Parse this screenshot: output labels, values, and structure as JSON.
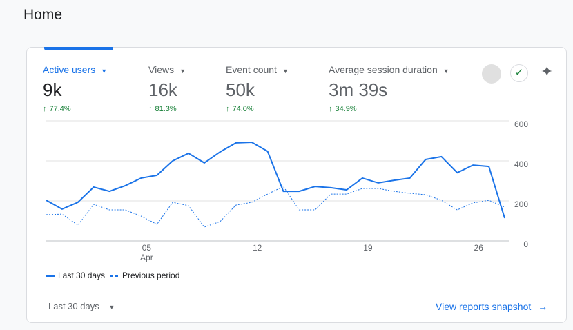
{
  "header": {
    "title": "Home"
  },
  "metrics": [
    {
      "label": "Active users",
      "value": "9k",
      "change": "77.4%"
    },
    {
      "label": "Views",
      "value": "16k",
      "change": "81.3%"
    },
    {
      "label": "Event count",
      "value": "50k",
      "change": "74.0%"
    },
    {
      "label": "Average session duration",
      "value": "3m 39s",
      "change": "34.9%"
    }
  ],
  "chart_data": {
    "type": "line",
    "categories": [
      null,
      null,
      null,
      null,
      null,
      null,
      "05",
      null,
      null,
      null,
      null,
      null,
      null,
      "12",
      null,
      null,
      null,
      null,
      null,
      null,
      "19",
      null,
      null,
      null,
      null,
      null,
      null,
      "26",
      null,
      null
    ],
    "month_label": "Apr",
    "series": [
      {
        "name": "Last 30 days",
        "color": "#1a73e8",
        "style": "solid",
        "values": [
          203,
          159,
          193,
          269,
          248,
          276,
          314,
          328,
          400,
          438,
          390,
          445,
          490,
          493,
          448,
          248,
          248,
          272,
          266,
          255,
          314,
          290,
          303,
          314,
          407,
          421,
          341,
          379,
          372,
          114
        ]
      },
      {
        "name": "Previous period",
        "color": "#1a73e8",
        "style": "dashed",
        "values": [
          131,
          134,
          79,
          183,
          155,
          155,
          124,
          83,
          193,
          176,
          69,
          97,
          179,
          193,
          234,
          272,
          155,
          155,
          234,
          234,
          262,
          262,
          248,
          238,
          231,
          203,
          155,
          190,
          203,
          169
        ]
      }
    ],
    "ylim": [
      0,
      600
    ],
    "yticks": [
      0,
      200,
      400,
      600
    ],
    "grid": true
  },
  "footer": {
    "range": "Last 30 days",
    "link": "View reports snapshot"
  }
}
